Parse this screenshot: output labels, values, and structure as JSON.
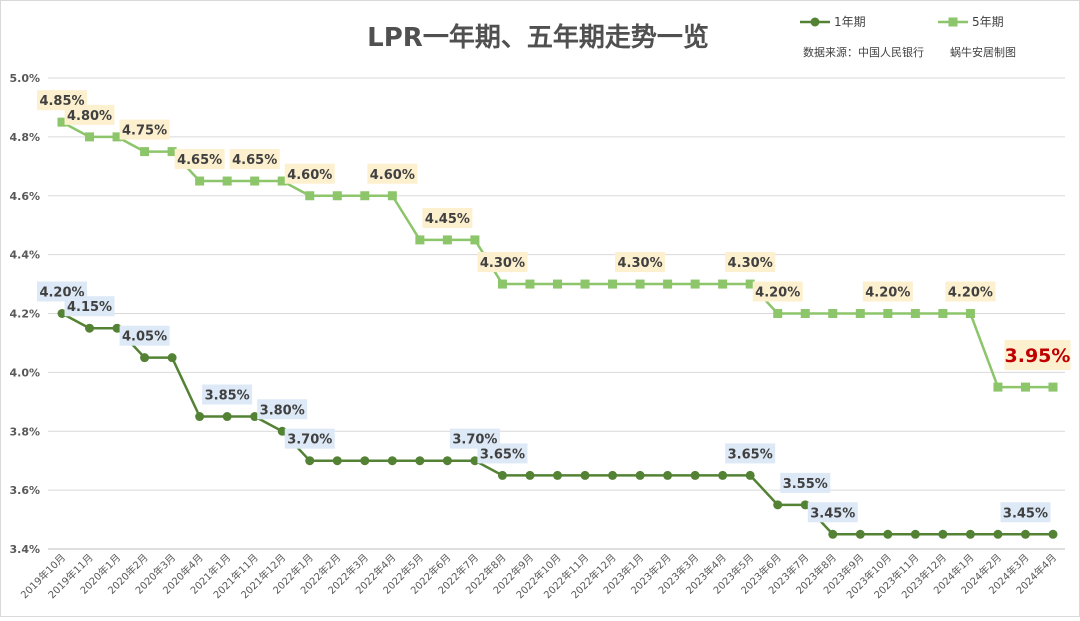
{
  "chart_data": {
    "type": "line",
    "title": "LPR一年期、五年期走势一览",
    "source": "数据来源：中国人民银行",
    "credit": "蜗牛安居制图",
    "ylim": [
      3.4,
      5.0
    ],
    "yticks": [
      "3.4%",
      "3.6%",
      "3.8%",
      "4.0%",
      "4.2%",
      "4.4%",
      "4.6%",
      "4.8%",
      "5.0%"
    ],
    "grid": true,
    "legend_position": "top-right",
    "categories": [
      "2019年10月",
      "2019年11月",
      "2020年1月",
      "2020年2月",
      "2020年3月",
      "2020年4月",
      "2021年1月",
      "2021年11月",
      "2021年12月",
      "2022年1月",
      "2022年2月",
      "2022年3月",
      "2022年4月",
      "2022年5月",
      "2022年6月",
      "2022年7月",
      "2022年8月",
      "2022年9月",
      "2022年10月",
      "2022年11月",
      "2022年12月",
      "2023年1月",
      "2023年2月",
      "2023年3月",
      "2023年4月",
      "2023年5月",
      "2023年6月",
      "2023年7月",
      "2023年8月",
      "2023年9月",
      "2023年10月",
      "2023年11月",
      "2023年12月",
      "2024年1月",
      "2024年2月",
      "2024年3月",
      "2024年4月"
    ],
    "series": [
      {
        "name": "1年期",
        "color": "#548235",
        "marker": "circle",
        "values": [
          4.2,
          4.15,
          4.15,
          4.05,
          4.05,
          3.85,
          3.85,
          3.85,
          3.8,
          3.7,
          3.7,
          3.7,
          3.7,
          3.7,
          3.7,
          3.7,
          3.65,
          3.65,
          3.65,
          3.65,
          3.65,
          3.65,
          3.65,
          3.65,
          3.65,
          3.65,
          3.55,
          3.55,
          3.45,
          3.45,
          3.45,
          3.45,
          3.45,
          3.45,
          3.45,
          3.45,
          3.45
        ],
        "labels": [
          {
            "index": 0,
            "text": "4.20%"
          },
          {
            "index": 1,
            "text": "4.15%"
          },
          {
            "index": 3,
            "text": "4.05%"
          },
          {
            "index": 6,
            "text": "3.85%"
          },
          {
            "index": 8,
            "text": "3.80%"
          },
          {
            "index": 9,
            "text": "3.70%"
          },
          {
            "index": 15,
            "text": "3.70%"
          },
          {
            "index": 16,
            "text": "3.65%"
          },
          {
            "index": 25,
            "text": "3.65%"
          },
          {
            "index": 27,
            "text": "3.55%"
          },
          {
            "index": 28,
            "text": "3.45%"
          },
          {
            "index": 35,
            "text": "3.45%"
          }
        ]
      },
      {
        "name": "5年期",
        "color": "#8cc56a",
        "marker": "square",
        "values": [
          4.85,
          4.8,
          4.8,
          4.75,
          4.75,
          4.65,
          4.65,
          4.65,
          4.65,
          4.6,
          4.6,
          4.6,
          4.6,
          4.45,
          4.45,
          4.45,
          4.3,
          4.3,
          4.3,
          4.3,
          4.3,
          4.3,
          4.3,
          4.3,
          4.3,
          4.3,
          4.2,
          4.2,
          4.2,
          4.2,
          4.2,
          4.2,
          4.2,
          4.2,
          3.95,
          3.95,
          3.95
        ],
        "labels": [
          {
            "index": 0,
            "text": "4.85%"
          },
          {
            "index": 1,
            "text": "4.80%"
          },
          {
            "index": 3,
            "text": "4.75%"
          },
          {
            "index": 5,
            "text": "4.65%"
          },
          {
            "index": 7,
            "text": "4.65%"
          },
          {
            "index": 9,
            "text": "4.60%"
          },
          {
            "index": 12,
            "text": "4.60%"
          },
          {
            "index": 14,
            "text": "4.45%"
          },
          {
            "index": 16,
            "text": "4.30%"
          },
          {
            "index": 21,
            "text": "4.30%"
          },
          {
            "index": 25,
            "text": "4.30%"
          },
          {
            "index": 26,
            "text": "4.20%"
          },
          {
            "index": 30,
            "text": "4.20%"
          },
          {
            "index": 33,
            "text": "4.20%"
          },
          {
            "index": 35,
            "text": "3.95%",
            "highlight": true
          }
        ]
      }
    ]
  }
}
